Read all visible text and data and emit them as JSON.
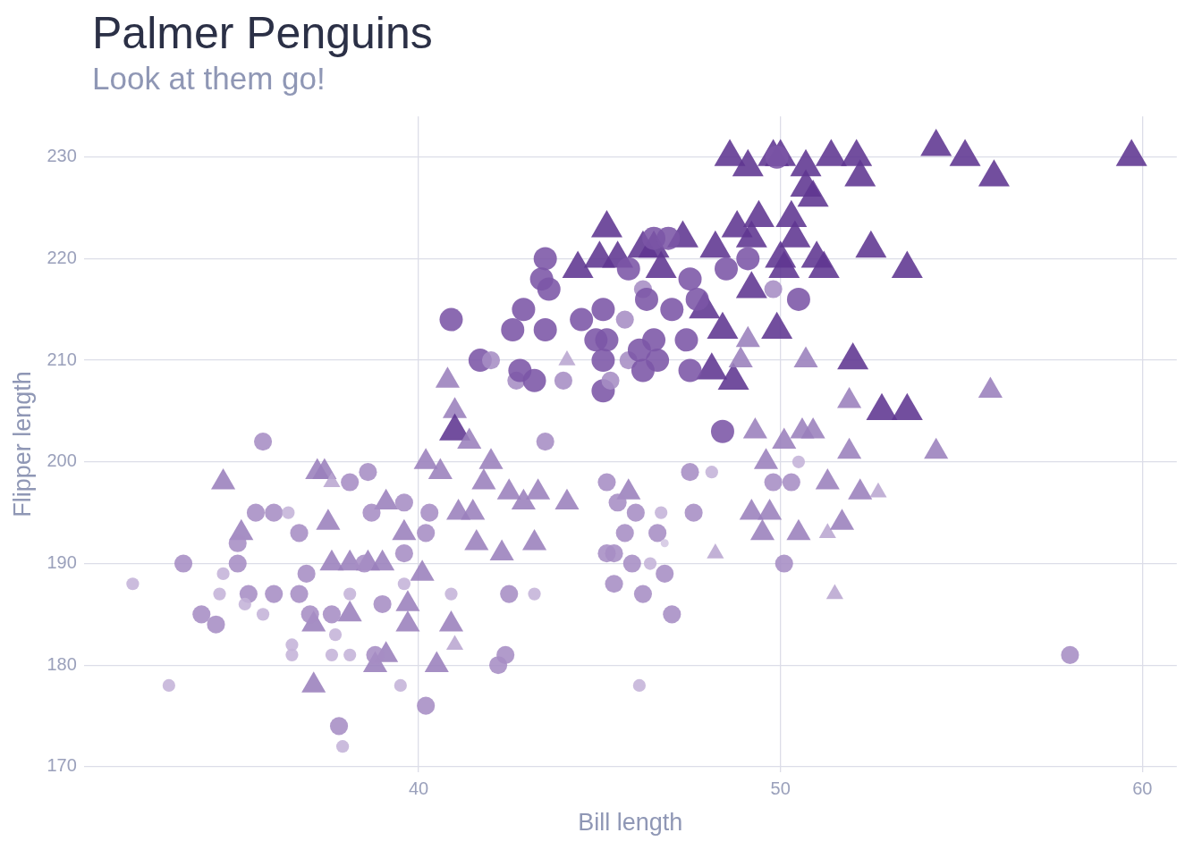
{
  "chart_data": {
    "type": "bubble",
    "title": "Palmer Penguins",
    "subtitle": "Look at them go!",
    "xlabel": "Bill length",
    "ylabel": "Flipper length",
    "xlim": [
      30.75,
      60.95
    ],
    "ylim": [
      169.5,
      234
    ],
    "xticks": [
      40,
      50,
      60
    ],
    "yticks": [
      170,
      180,
      190,
      200,
      210,
      220,
      230
    ],
    "grid": true,
    "legend": false,
    "series": [
      {
        "marker": "circle",
        "x": [
          32.1,
          33.1,
          33.5,
          34.0,
          34.4,
          34.6,
          34.5,
          35.7,
          35.0,
          35.0,
          35.3,
          35.5,
          36.0,
          36.4,
          36.7,
          35.7,
          35.2,
          36.0,
          36.7,
          36.9,
          36.5,
          36.5,
          37.0,
          37.6,
          37.6,
          37.7,
          37.8,
          37.9,
          38.1,
          38.6,
          38.1,
          38.1,
          38.7,
          39.6,
          39.5,
          40.2,
          39.6,
          39.0,
          38.8,
          38.5,
          39.6,
          40.2,
          40.3,
          40.9,
          40.9,
          41.7,
          42.0,
          42.2,
          42.4,
          42.5,
          42.6,
          42.9,
          42.7,
          42.8,
          43.2,
          43.5,
          43.4,
          43.6,
          43.5,
          43.5,
          43.2,
          44.0,
          44.5,
          44.9,
          45.1,
          45.2,
          45.3,
          45.2,
          45.1,
          45.1,
          45.4,
          45.2,
          45.4,
          45.5,
          45.7,
          45.8,
          45.7,
          45.8,
          45.9,
          46.0,
          46.1,
          46.2,
          46.2,
          46.1,
          46.2,
          46.3,
          46.5,
          46.4,
          46.6,
          46.6,
          46.5,
          46.7,
          46.8,
          47.0,
          46.9,
          47.0,
          47.4,
          47.5,
          47.5,
          47.7,
          47.5,
          47.6,
          48.1,
          48.4,
          48.5,
          49.1,
          49.8,
          49.9,
          50.5,
          50.1,
          49.8,
          50.3,
          50.5,
          58.0,
          46.8
        ],
        "values": [
          188,
          178,
          190,
          185,
          184,
          189,
          187,
          202,
          192,
          190,
          187,
          195,
          195,
          195,
          193,
          185,
          186,
          187,
          187,
          189,
          182,
          181,
          185,
          185,
          181,
          183,
          174,
          172,
          198,
          199,
          187,
          181,
          195,
          196,
          178,
          176,
          188,
          186,
          181,
          190,
          191,
          193,
          195,
          187,
          214,
          210,
          210,
          180,
          181,
          187,
          213,
          215,
          208,
          209,
          208,
          220,
          218,
          217,
          213,
          202,
          187,
          208,
          214,
          212,
          207,
          198,
          208,
          212,
          215,
          210,
          191,
          191,
          188,
          196,
          193,
          219,
          214,
          210,
          190,
          195,
          178,
          187,
          217,
          211,
          209,
          216,
          222,
          190,
          193,
          210,
          212,
          195,
          189,
          185,
          222,
          215,
          212,
          218,
          209,
          216,
          199,
          195,
          199,
          203,
          219,
          220,
          217,
          230,
          216,
          190,
          198,
          198,
          200,
          181,
          192
        ],
        "sizes": [
          0.3,
          0.3,
          0.6,
          0.6,
          0.6,
          0.3,
          0.3,
          0.6,
          0.6,
          0.6,
          0.6,
          0.6,
          0.6,
          0.3,
          0.6,
          0.3,
          0.3,
          0.6,
          0.6,
          0.6,
          0.3,
          0.3,
          0.6,
          0.6,
          0.3,
          0.3,
          0.6,
          0.3,
          0.6,
          0.6,
          0.3,
          0.3,
          0.6,
          0.6,
          0.3,
          0.6,
          0.3,
          0.6,
          0.6,
          0.6,
          0.6,
          0.6,
          0.6,
          0.3,
          1,
          1,
          0.6,
          0.6,
          0.6,
          0.6,
          1,
          1,
          0.6,
          1,
          1,
          1,
          1,
          1,
          1,
          0.6,
          0.3,
          0.6,
          1,
          1,
          1,
          0.6,
          0.6,
          1,
          1,
          1,
          0.6,
          0.6,
          0.6,
          0.6,
          0.6,
          1,
          0.6,
          0.6,
          0.6,
          0.6,
          0.3,
          0.6,
          0.6,
          1,
          1,
          1,
          1,
          0.3,
          0.6,
          1,
          1,
          0.3,
          0.6,
          0.6,
          1,
          1,
          1,
          1,
          1,
          1,
          0.6,
          0.6,
          0.3,
          1,
          1,
          1,
          0.6,
          1,
          1,
          0.6,
          0.6,
          0.6,
          0.3,
          0.6,
          0.12
        ],
        "colors": [
          "#c4b3d8",
          "#c4b3d8",
          "#a68dc4",
          "#a68dc4",
          "#a68dc4",
          "#c4b3d8",
          "#c4b3d8",
          "#a68dc4",
          "#a68dc4",
          "#a68dc4",
          "#a68dc4",
          "#a68dc4",
          "#a68dc4",
          "#c4b3d8",
          "#a68dc4",
          "#c4b3d8",
          "#c4b3d8",
          "#a68dc4",
          "#a68dc4",
          "#a68dc4",
          "#c4b3d8",
          "#c4b3d8",
          "#a68dc4",
          "#a68dc4",
          "#c4b3d8",
          "#c4b3d8",
          "#a68dc4",
          "#c4b3d8",
          "#a68dc4",
          "#a68dc4",
          "#c4b3d8",
          "#c4b3d8",
          "#a68dc4",
          "#a68dc4",
          "#c4b3d8",
          "#a68dc4",
          "#c4b3d8",
          "#a68dc4",
          "#a68dc4",
          "#a68dc4",
          "#a68dc4",
          "#a68dc4",
          "#a68dc4",
          "#c4b3d8",
          "#7b55a6",
          "#7b55a6",
          "#a68dc4",
          "#a68dc4",
          "#a68dc4",
          "#a68dc4",
          "#7b55a6",
          "#7b55a6",
          "#a68dc4",
          "#7b55a6",
          "#7b55a6",
          "#7b55a6",
          "#7b55a6",
          "#7b55a6",
          "#7b55a6",
          "#a68dc4",
          "#c4b3d8",
          "#a68dc4",
          "#7b55a6",
          "#7b55a6",
          "#7b55a6",
          "#a68dc4",
          "#a68dc4",
          "#7b55a6",
          "#7b55a6",
          "#7b55a6",
          "#a68dc4",
          "#a68dc4",
          "#a68dc4",
          "#a68dc4",
          "#a68dc4",
          "#7b55a6",
          "#a68dc4",
          "#a68dc4",
          "#a68dc4",
          "#a68dc4",
          "#c4b3d8",
          "#a68dc4",
          "#a68dc4",
          "#7b55a6",
          "#7b55a6",
          "#7b55a6",
          "#7b55a6",
          "#c4b3d8",
          "#a68dc4",
          "#7b55a6",
          "#7b55a6",
          "#c4b3d8",
          "#a68dc4",
          "#a68dc4",
          "#7b55a6",
          "#7b55a6",
          "#7b55a6",
          "#7b55a6",
          "#7b55a6",
          "#7b55a6",
          "#a68dc4",
          "#a68dc4",
          "#c4b3d8",
          "#7b55a6",
          "#7b55a6",
          "#7b55a6",
          "#a68dc4",
          "#7b55a6",
          "#7b55a6",
          "#a68dc4",
          "#a68dc4",
          "#a68dc4",
          "#c4b3d8",
          "#a68dc4",
          "#d4c7e3"
        ]
      },
      {
        "marker": "triangle",
        "x": [
          34.6,
          35.1,
          37.2,
          37.4,
          37.6,
          37.5,
          37.1,
          37.1,
          37.6,
          38.1,
          38.8,
          39.1,
          39.1,
          39.0,
          39.6,
          39.7,
          39.7,
          40.1,
          40.2,
          40.5,
          40.6,
          40.8,
          41.0,
          41.0,
          41.1,
          40.9,
          41.0,
          41.5,
          41.6,
          41.4,
          41.8,
          42.0,
          42.3,
          42.5,
          42.9,
          43.2,
          43.3,
          44.1,
          44.1,
          44.4,
          45.0,
          45.2,
          45.5,
          45.8,
          46.2,
          46.5,
          46.7,
          47.3,
          47.9,
          48.2,
          48.1,
          48.4,
          48.7,
          48.8,
          48.6,
          49.1,
          49.2,
          49.4,
          49.2,
          48.9,
          49.1,
          49.3,
          49.2,
          49.5,
          49.6,
          49.7,
          49.9,
          49.8,
          50.0,
          50.0,
          50.1,
          50.3,
          50.4,
          50.5,
          50.1,
          50.6,
          50.7,
          50.7,
          50.7,
          50.9,
          51.0,
          51.2,
          50.9,
          51.3,
          51.3,
          51.4,
          51.5,
          51.7,
          51.9,
          51.9,
          52.0,
          52.1,
          52.2,
          52.2,
          52.5,
          52.8,
          52.7,
          53.5,
          53.5,
          54.3,
          54.3,
          55.1,
          55.9,
          55.8,
          59.7,
          48.2,
          38.6,
          38.1
        ],
        "values": [
          198,
          193,
          199,
          199,
          198,
          194,
          178,
          184,
          190,
          185,
          180,
          181,
          196,
          190,
          193,
          186,
          184,
          189,
          200,
          180,
          199,
          208,
          205,
          203,
          195,
          184,
          182,
          195,
          192,
          202,
          198,
          200,
          191,
          197,
          196,
          192,
          197,
          196,
          210,
          219,
          220,
          223,
          220,
          197,
          221,
          221,
          219,
          222,
          215,
          221,
          209,
          213,
          208,
          223,
          230,
          229,
          222,
          224,
          217,
          210,
          212,
          203,
          195,
          193,
          200,
          195,
          213,
          230,
          230,
          220,
          219,
          224,
          222,
          193,
          202,
          203,
          229,
          210,
          227,
          226,
          220,
          219,
          203,
          198,
          193,
          230,
          187,
          194,
          201,
          206,
          210,
          230,
          228,
          197,
          221,
          205,
          197,
          219,
          205,
          201,
          231,
          230,
          228,
          207,
          230,
          191,
          190,
          190
        ],
        "sizes": [
          0.6,
          0.6,
          0.6,
          0.6,
          0.3,
          0.6,
          0.6,
          0.6,
          0.6,
          0.6,
          0.6,
          0.6,
          0.6,
          0.6,
          0.6,
          0.6,
          0.6,
          0.6,
          0.6,
          0.6,
          0.6,
          0.6,
          0.6,
          1,
          0.6,
          0.6,
          0.3,
          0.6,
          0.6,
          0.6,
          0.6,
          0.6,
          0.6,
          0.6,
          0.6,
          0.6,
          0.6,
          0.6,
          0.3,
          1,
          1,
          1,
          1,
          0.6,
          1,
          1,
          1,
          1,
          1,
          1,
          1,
          1,
          1,
          1,
          1,
          1,
          1,
          1,
          1,
          0.6,
          0.6,
          0.6,
          0.6,
          0.6,
          0.6,
          0.6,
          1,
          1,
          1,
          1,
          1,
          1,
          1,
          0.6,
          0.6,
          0.6,
          1,
          0.6,
          1,
          1,
          1,
          1,
          0.6,
          0.6,
          0.3,
          1,
          0.3,
          0.6,
          0.6,
          0.6,
          1,
          1,
          1,
          0.6,
          1,
          1,
          0.3,
          1,
          1,
          0.6,
          1,
          1,
          1,
          0.6,
          1,
          0.3,
          0.6,
          0.6
        ],
        "colors": [
          "#9a7fbc",
          "#9a7fbc",
          "#9a7fbc",
          "#9a7fbc",
          "#b9a6d0",
          "#9a7fbc",
          "#9a7fbc",
          "#9a7fbc",
          "#9a7fbc",
          "#9a7fbc",
          "#9a7fbc",
          "#9a7fbc",
          "#9a7fbc",
          "#9a7fbc",
          "#9a7fbc",
          "#9a7fbc",
          "#9a7fbc",
          "#9a7fbc",
          "#9a7fbc",
          "#9a7fbc",
          "#9a7fbc",
          "#9a7fbc",
          "#9a7fbc",
          "#5f3591",
          "#9a7fbc",
          "#9a7fbc",
          "#b9a6d0",
          "#9a7fbc",
          "#9a7fbc",
          "#9a7fbc",
          "#9a7fbc",
          "#9a7fbc",
          "#9a7fbc",
          "#9a7fbc",
          "#9a7fbc",
          "#9a7fbc",
          "#9a7fbc",
          "#9a7fbc",
          "#b9a6d0",
          "#5f3591",
          "#5f3591",
          "#5f3591",
          "#5f3591",
          "#9a7fbc",
          "#5f3591",
          "#5f3591",
          "#5f3591",
          "#5f3591",
          "#5f3591",
          "#5f3591",
          "#5f3591",
          "#5f3591",
          "#5f3591",
          "#5f3591",
          "#5f3591",
          "#5f3591",
          "#5f3591",
          "#5f3591",
          "#5f3591",
          "#9a7fbc",
          "#9a7fbc",
          "#9a7fbc",
          "#9a7fbc",
          "#9a7fbc",
          "#9a7fbc",
          "#9a7fbc",
          "#5f3591",
          "#5f3591",
          "#5f3591",
          "#5f3591",
          "#5f3591",
          "#5f3591",
          "#5f3591",
          "#9a7fbc",
          "#9a7fbc",
          "#9a7fbc",
          "#5f3591",
          "#9a7fbc",
          "#5f3591",
          "#5f3591",
          "#5f3591",
          "#5f3591",
          "#9a7fbc",
          "#9a7fbc",
          "#b9a6d0",
          "#5f3591",
          "#b9a6d0",
          "#9a7fbc",
          "#9a7fbc",
          "#9a7fbc",
          "#5f3591",
          "#5f3591",
          "#5f3591",
          "#9a7fbc",
          "#5f3591",
          "#5f3591",
          "#b9a6d0",
          "#5f3591",
          "#5f3591",
          "#9a7fbc",
          "#5f3591",
          "#5f3591",
          "#5f3591",
          "#9a7fbc",
          "#5f3591",
          "#b9a6d0",
          "#9a7fbc",
          "#9a7fbc"
        ]
      }
    ]
  }
}
